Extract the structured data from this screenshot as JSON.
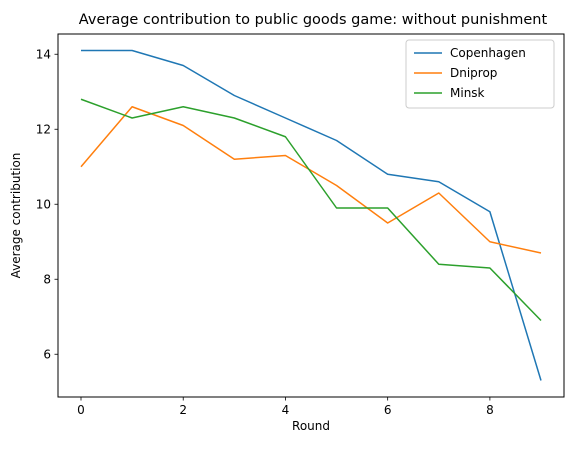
{
  "chart_data": {
    "type": "line",
    "title": "Average contribution to public goods game: without punishment",
    "xlabel": "Round",
    "ylabel": "Average contribution",
    "x": [
      0,
      1,
      2,
      3,
      4,
      5,
      6,
      7,
      8,
      9
    ],
    "xlim": [
      -0.45,
      9.45
    ],
    "ylim": [
      4.86,
      14.54
    ],
    "xticks": [
      0,
      2,
      4,
      6,
      8
    ],
    "yticks": [
      6,
      8,
      10,
      12,
      14
    ],
    "grid": false,
    "legend_position": "top-right",
    "series": [
      {
        "name": "Copenhagen",
        "color": "#1f77b4",
        "values": [
          14.1,
          14.1,
          13.7,
          12.9,
          12.3,
          11.7,
          10.8,
          10.6,
          9.8,
          5.3
        ]
      },
      {
        "name": "Dniprop",
        "color": "#ff7f0e",
        "values": [
          11.0,
          12.6,
          12.1,
          11.2,
          11.3,
          10.5,
          9.5,
          10.3,
          9.0,
          8.7
        ]
      },
      {
        "name": "Minsk",
        "color": "#2ca02c",
        "values": [
          12.8,
          12.3,
          12.6,
          12.3,
          11.8,
          9.9,
          9.9,
          8.4,
          8.3,
          6.9
        ]
      }
    ]
  }
}
